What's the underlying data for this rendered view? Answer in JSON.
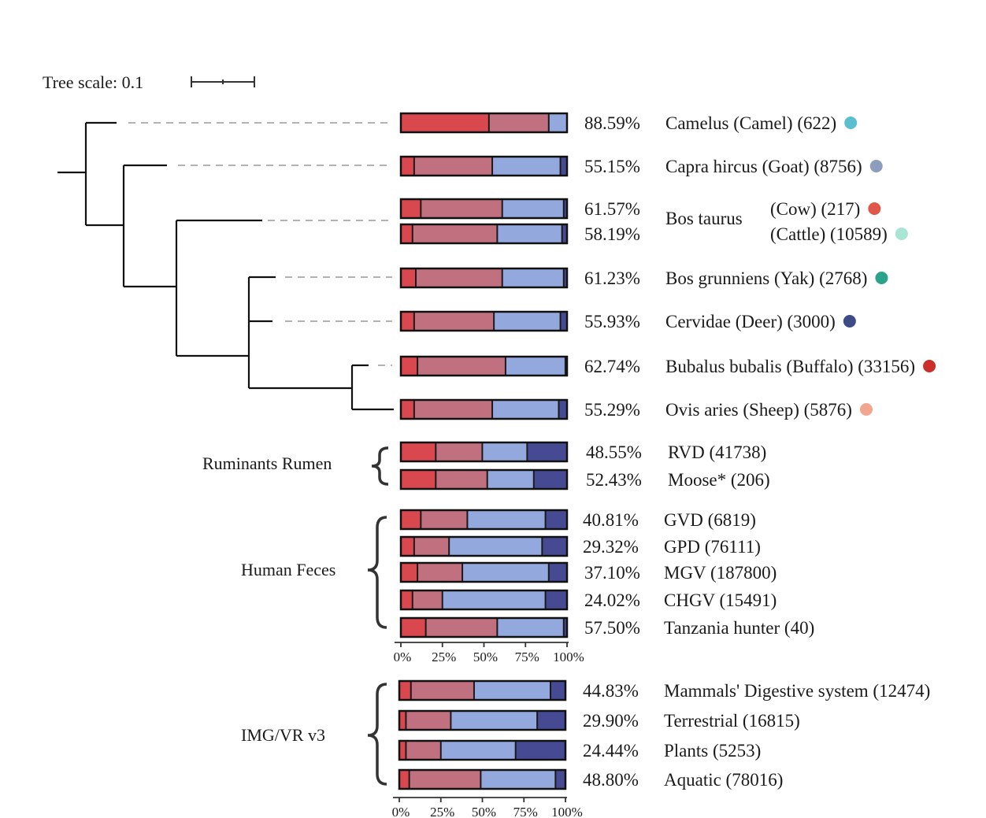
{
  "tree_scale_label": "Tree scale: 0.1",
  "bos_taurus_label": "Bos taurus",
  "group_labels": {
    "rumen": "Ruminants Rumen",
    "human": "Human Feces",
    "imgvr": "IMG/VR v3"
  },
  "axis_ticks": [
    "0%",
    "25%",
    "50%",
    "75%",
    "100%"
  ],
  "segment_colors": [
    "#d9474f",
    "#c0707f",
    "#93a8dd",
    "#454a92"
  ],
  "chart_data": {
    "type": "bar",
    "orientation": "horizontal",
    "stacked": true,
    "xlim": [
      0,
      100
    ],
    "x_ticks": [
      "0%",
      "25%",
      "50%",
      "75%",
      "100%"
    ],
    "rows": [
      {
        "label": "Camelus (Camel) (622)",
        "pct_text": "88.59%",
        "dot": "#5bbfd0",
        "segments": [
          53,
          36,
          11,
          0
        ]
      },
      {
        "label": "Capra hircus (Goat) (8756)",
        "pct_text": "55.15%",
        "dot": "#8d9dbd",
        "segments": [
          8,
          47,
          41,
          4
        ]
      },
      {
        "label": "(Cow) (217)",
        "pct_text": "61.57%",
        "dot": "#e0564a",
        "segments": [
          12,
          49,
          37,
          2
        ]
      },
      {
        "label": "(Cattle) (10589)",
        "pct_text": "58.19%",
        "dot": "#a8e6d3",
        "segments": [
          7,
          51,
          39,
          3
        ]
      },
      {
        "label": "Bos grunniens (Yak) (2768)",
        "pct_text": "61.23%",
        "dot": "#2aa38a",
        "segments": [
          9,
          52,
          37,
          2
        ]
      },
      {
        "label": "Cervidae (Deer) (3000)",
        "pct_text": "55.93%",
        "dot": "#3e4b86",
        "segments": [
          8,
          48,
          40,
          4
        ]
      },
      {
        "label": "Bubalus bubalis (Buffalo) (33156)",
        "pct_text": "62.74%",
        "dot": "#cc2f2a",
        "segments": [
          10,
          53,
          36,
          1
        ]
      },
      {
        "label": "Ovis aries (Sheep) (5876)",
        "pct_text": "55.29%",
        "dot": "#f2a68f",
        "segments": [
          8,
          47,
          40,
          5
        ]
      },
      {
        "label": "RVD (41738)",
        "pct_text": "48.55%",
        "dot": "",
        "segments": [
          21,
          28,
          27,
          24
        ]
      },
      {
        "label": "Moose* (206)",
        "pct_text": "52.43%",
        "dot": "",
        "segments": [
          21,
          31,
          28,
          20
        ]
      },
      {
        "label": "GVD (6819)",
        "pct_text": "40.81%",
        "dot": "",
        "segments": [
          12,
          28,
          47,
          13
        ]
      },
      {
        "label": "GPD (76111)",
        "pct_text": "29.32%",
        "dot": "",
        "segments": [
          8,
          21,
          56,
          15
        ]
      },
      {
        "label": "MGV (187800)",
        "pct_text": "37.10%",
        "dot": "",
        "segments": [
          10,
          27,
          52,
          11
        ]
      },
      {
        "label": "CHGV (15491)",
        "pct_text": "24.02%",
        "dot": "",
        "segments": [
          7,
          18,
          62,
          13
        ]
      },
      {
        "label": "Tanzania hunter (40)",
        "pct_text": "57.50%",
        "dot": "",
        "segments": [
          15,
          43,
          40,
          2
        ]
      },
      {
        "label": "Mammals' Digestive system (12474)",
        "pct_text": "44.83%",
        "dot": "",
        "segments": [
          7,
          38,
          46,
          9
        ]
      },
      {
        "label": "Terrestrial (16815)",
        "pct_text": "29.90%",
        "dot": "",
        "segments": [
          4,
          27,
          52,
          17
        ]
      },
      {
        "label": "Plants (5253)",
        "pct_text": "24.44%",
        "dot": "",
        "segments": [
          4,
          21,
          45,
          30
        ]
      },
      {
        "label": "Aquatic (78016)",
        "pct_text": "48.80%",
        "dot": "",
        "segments": [
          6,
          43,
          45,
          6
        ]
      }
    ]
  }
}
